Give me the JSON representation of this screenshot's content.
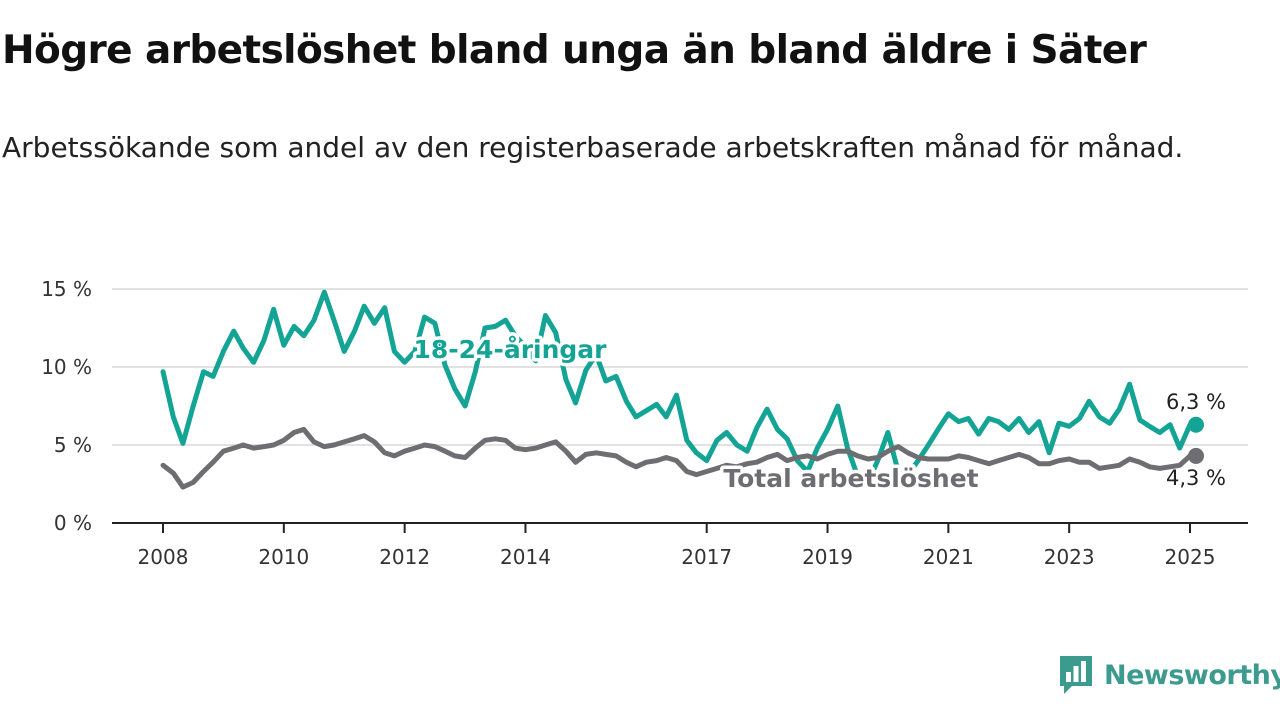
{
  "title": "Högre arbetslöshet bland unga än bland äldre i Säter",
  "subtitle": "Arbetssökande som andel av den registerbaserade arbetskraften månad för månad.",
  "brand": {
    "name": "Newsworthy",
    "logo_icon": "newsworthy-chart-bubble-icon"
  },
  "colors": {
    "youth": "#14a495",
    "total": "#6e6d72",
    "grid": "#d9d9d9",
    "axis": "#222222"
  },
  "chart_data": {
    "type": "line",
    "ylim": [
      0,
      15
    ],
    "y_ticks": [
      {
        "value": 0,
        "label": "0 %"
      },
      {
        "value": 5,
        "label": "5 %"
      },
      {
        "value": 10,
        "label": "10 %"
      },
      {
        "value": 15,
        "label": "15 %"
      }
    ],
    "x_range": [
      2008.0,
      2025.0
    ],
    "x_ticks": [
      {
        "value": 2008,
        "label": "2008"
      },
      {
        "value": 2010,
        "label": "2010"
      },
      {
        "value": 2012,
        "label": "2012"
      },
      {
        "value": 2014,
        "label": "2014"
      },
      {
        "value": 2017,
        "label": "2017"
      },
      {
        "value": 2019,
        "label": "2019"
      },
      {
        "value": 2021,
        "label": "2021"
      },
      {
        "value": 2023,
        "label": "2023"
      },
      {
        "value": 2025,
        "label": "2025"
      }
    ],
    "grid": true,
    "series": [
      {
        "name": "18-24-åringar",
        "color": "#14a495",
        "end_label": "6,3 %",
        "points": [
          [
            2008.0,
            9.7
          ],
          [
            2008.17,
            6.8
          ],
          [
            2008.33,
            5.1
          ],
          [
            2008.5,
            7.5
          ],
          [
            2008.67,
            9.7
          ],
          [
            2008.83,
            9.4
          ],
          [
            2009.0,
            11.0
          ],
          [
            2009.17,
            12.3
          ],
          [
            2009.33,
            11.2
          ],
          [
            2009.5,
            10.3
          ],
          [
            2009.67,
            11.7
          ],
          [
            2009.83,
            13.7
          ],
          [
            2010.0,
            11.4
          ],
          [
            2010.17,
            12.6
          ],
          [
            2010.33,
            12.0
          ],
          [
            2010.5,
            13.0
          ],
          [
            2010.67,
            14.8
          ],
          [
            2010.83,
            13.0
          ],
          [
            2011.0,
            11.0
          ],
          [
            2011.17,
            12.3
          ],
          [
            2011.33,
            13.9
          ],
          [
            2011.5,
            12.8
          ],
          [
            2011.67,
            13.8
          ],
          [
            2011.83,
            11.0
          ],
          [
            2012.0,
            10.3
          ],
          [
            2012.17,
            11.0
          ],
          [
            2012.33,
            13.2
          ],
          [
            2012.5,
            12.8
          ],
          [
            2012.67,
            10.1
          ],
          [
            2012.83,
            8.6
          ],
          [
            2013.0,
            7.5
          ],
          [
            2013.17,
            9.7
          ],
          [
            2013.33,
            12.5
          ],
          [
            2013.5,
            12.6
          ],
          [
            2013.67,
            13.0
          ],
          [
            2013.83,
            12.0
          ],
          [
            2014.0,
            11.3
          ],
          [
            2014.17,
            10.4
          ],
          [
            2014.33,
            13.3
          ],
          [
            2014.5,
            12.2
          ],
          [
            2014.67,
            9.2
          ],
          [
            2014.83,
            7.7
          ],
          [
            2015.0,
            9.8
          ],
          [
            2015.17,
            10.8
          ],
          [
            2015.33,
            9.1
          ],
          [
            2015.5,
            9.4
          ],
          [
            2015.67,
            7.8
          ],
          [
            2015.83,
            6.8
          ],
          [
            2016.0,
            7.2
          ],
          [
            2016.17,
            7.6
          ],
          [
            2016.33,
            6.8
          ],
          [
            2016.5,
            8.2
          ],
          [
            2016.67,
            5.3
          ],
          [
            2016.83,
            4.5
          ],
          [
            2017.0,
            4.0
          ],
          [
            2017.17,
            5.3
          ],
          [
            2017.33,
            5.8
          ],
          [
            2017.5,
            5.0
          ],
          [
            2017.67,
            4.6
          ],
          [
            2017.83,
            6.1
          ],
          [
            2018.0,
            7.3
          ],
          [
            2018.17,
            6.0
          ],
          [
            2018.33,
            5.4
          ],
          [
            2018.5,
            4.0
          ],
          [
            2018.67,
            3.3
          ],
          [
            2018.83,
            4.8
          ],
          [
            2019.0,
            6.0
          ],
          [
            2019.17,
            7.5
          ],
          [
            2019.33,
            4.8
          ],
          [
            2019.5,
            3.0
          ],
          [
            2019.67,
            2.6
          ],
          [
            2019.83,
            4.0
          ],
          [
            2020.0,
            5.8
          ],
          [
            2020.17,
            3.3
          ],
          [
            2020.33,
            3.1
          ],
          [
            2020.5,
            4.0
          ],
          [
            2020.67,
            5.0
          ],
          [
            2020.83,
            6.0
          ],
          [
            2021.0,
            7.0
          ],
          [
            2021.17,
            6.5
          ],
          [
            2021.33,
            6.7
          ],
          [
            2021.5,
            5.7
          ],
          [
            2021.67,
            6.7
          ],
          [
            2021.83,
            6.5
          ],
          [
            2022.0,
            6.0
          ],
          [
            2022.17,
            6.7
          ],
          [
            2022.33,
            5.8
          ],
          [
            2022.5,
            6.5
          ],
          [
            2022.67,
            4.5
          ],
          [
            2022.83,
            6.4
          ],
          [
            2023.0,
            6.2
          ],
          [
            2023.17,
            6.7
          ],
          [
            2023.33,
            7.8
          ],
          [
            2023.5,
            6.8
          ],
          [
            2023.67,
            6.4
          ],
          [
            2023.83,
            7.3
          ],
          [
            2024.0,
            8.9
          ],
          [
            2024.17,
            6.6
          ],
          [
            2024.33,
            6.2
          ],
          [
            2024.5,
            5.8
          ],
          [
            2024.67,
            6.3
          ],
          [
            2024.83,
            4.8
          ],
          [
            2025.0,
            6.3
          ]
        ]
      },
      {
        "name": "Total arbetslöshet",
        "color": "#6e6d72",
        "end_label": "4,3 %",
        "points": [
          [
            2008.0,
            3.7
          ],
          [
            2008.17,
            3.2
          ],
          [
            2008.33,
            2.3
          ],
          [
            2008.5,
            2.6
          ],
          [
            2008.67,
            3.3
          ],
          [
            2008.83,
            3.9
          ],
          [
            2009.0,
            4.6
          ],
          [
            2009.17,
            4.8
          ],
          [
            2009.33,
            5.0
          ],
          [
            2009.5,
            4.8
          ],
          [
            2009.67,
            4.9
          ],
          [
            2009.83,
            5.0
          ],
          [
            2010.0,
            5.3
          ],
          [
            2010.17,
            5.8
          ],
          [
            2010.33,
            6.0
          ],
          [
            2010.5,
            5.2
          ],
          [
            2010.67,
            4.9
          ],
          [
            2010.83,
            5.0
          ],
          [
            2011.0,
            5.2
          ],
          [
            2011.17,
            5.4
          ],
          [
            2011.33,
            5.6
          ],
          [
            2011.5,
            5.2
          ],
          [
            2011.67,
            4.5
          ],
          [
            2011.83,
            4.3
          ],
          [
            2012.0,
            4.6
          ],
          [
            2012.17,
            4.8
          ],
          [
            2012.33,
            5.0
          ],
          [
            2012.5,
            4.9
          ],
          [
            2012.67,
            4.6
          ],
          [
            2012.83,
            4.3
          ],
          [
            2013.0,
            4.2
          ],
          [
            2013.17,
            4.8
          ],
          [
            2013.33,
            5.3
          ],
          [
            2013.5,
            5.4
          ],
          [
            2013.67,
            5.3
          ],
          [
            2013.83,
            4.8
          ],
          [
            2014.0,
            4.7
          ],
          [
            2014.17,
            4.8
          ],
          [
            2014.33,
            5.0
          ],
          [
            2014.5,
            5.2
          ],
          [
            2014.67,
            4.6
          ],
          [
            2014.83,
            3.9
          ],
          [
            2015.0,
            4.4
          ],
          [
            2015.17,
            4.5
          ],
          [
            2015.33,
            4.4
          ],
          [
            2015.5,
            4.3
          ],
          [
            2015.67,
            3.9
          ],
          [
            2015.83,
            3.6
          ],
          [
            2016.0,
            3.9
          ],
          [
            2016.17,
            4.0
          ],
          [
            2016.33,
            4.2
          ],
          [
            2016.5,
            4.0
          ],
          [
            2016.67,
            3.3
          ],
          [
            2016.83,
            3.1
          ],
          [
            2017.0,
            3.3
          ],
          [
            2017.17,
            3.5
          ],
          [
            2017.33,
            3.7
          ],
          [
            2017.5,
            3.6
          ],
          [
            2017.67,
            3.8
          ],
          [
            2017.83,
            3.9
          ],
          [
            2018.0,
            4.2
          ],
          [
            2018.17,
            4.4
          ],
          [
            2018.33,
            4.0
          ],
          [
            2018.5,
            4.2
          ],
          [
            2018.67,
            4.3
          ],
          [
            2018.83,
            4.1
          ],
          [
            2019.0,
            4.4
          ],
          [
            2019.17,
            4.6
          ],
          [
            2019.33,
            4.6
          ],
          [
            2019.5,
            4.3
          ],
          [
            2019.67,
            4.1
          ],
          [
            2019.83,
            4.2
          ],
          [
            2020.0,
            4.6
          ],
          [
            2020.17,
            4.9
          ],
          [
            2020.33,
            4.5
          ],
          [
            2020.5,
            4.2
          ],
          [
            2020.67,
            4.1
          ],
          [
            2020.83,
            4.1
          ],
          [
            2021.0,
            4.1
          ],
          [
            2021.17,
            4.3
          ],
          [
            2021.33,
            4.2
          ],
          [
            2021.5,
            4.0
          ],
          [
            2021.67,
            3.8
          ],
          [
            2021.83,
            4.0
          ],
          [
            2022.0,
            4.2
          ],
          [
            2022.17,
            4.4
          ],
          [
            2022.33,
            4.2
          ],
          [
            2022.5,
            3.8
          ],
          [
            2022.67,
            3.8
          ],
          [
            2022.83,
            4.0
          ],
          [
            2023.0,
            4.1
          ],
          [
            2023.17,
            3.9
          ],
          [
            2023.33,
            3.9
          ],
          [
            2023.5,
            3.5
          ],
          [
            2023.67,
            3.6
          ],
          [
            2023.83,
            3.7
          ],
          [
            2024.0,
            4.1
          ],
          [
            2024.17,
            3.9
          ],
          [
            2024.33,
            3.6
          ],
          [
            2024.5,
            3.5
          ],
          [
            2024.67,
            3.6
          ],
          [
            2024.83,
            3.7
          ],
          [
            2025.0,
            4.3
          ]
        ]
      }
    ]
  }
}
